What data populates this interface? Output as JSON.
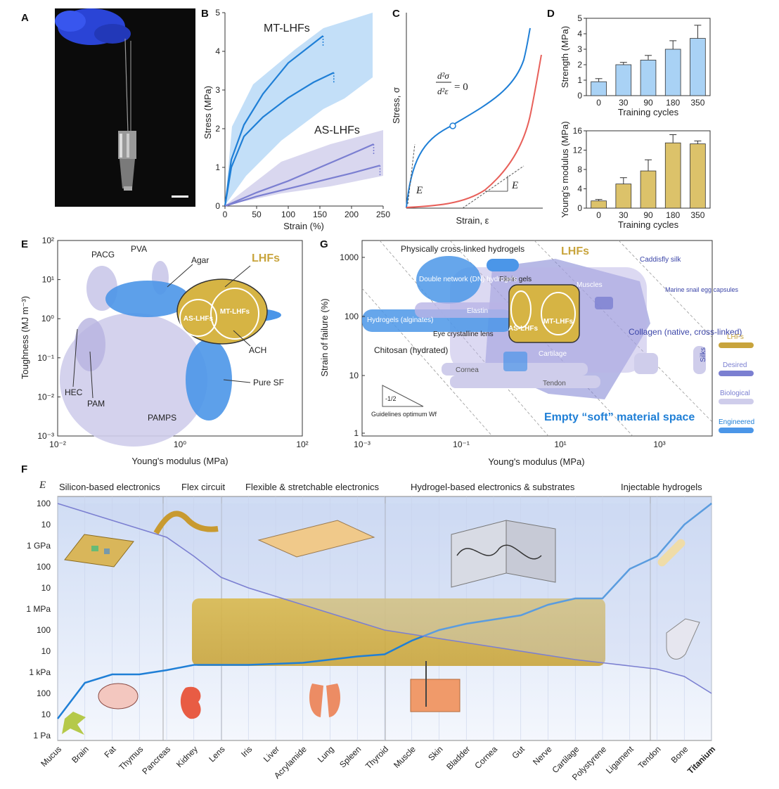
{
  "panels": {
    "A": "A",
    "B": "B",
    "C": "C",
    "D": "D",
    "E": "E",
    "F": "F",
    "G": "G"
  },
  "colors": {
    "blue": "#1f7fd6",
    "lightblue": "#a9d2f5",
    "purple": "#7b7fd1",
    "lightpurple": "#cfcdeb",
    "gold": "#c8a43c",
    "red": "#e8605a"
  },
  "chart_data": [
    {
      "panel": "B",
      "type": "line",
      "xlabel": "Strain (%)",
      "ylabel": "Stress (MPa)",
      "xlim": [
        0,
        250
      ],
      "ylim": [
        0,
        5
      ],
      "xticks": [
        "0",
        "50",
        "100",
        "150",
        "200",
        "250"
      ],
      "yticks": [
        "0",
        "1",
        "2",
        "3",
        "4",
        "5"
      ],
      "annotations": [
        "MT-LHFs",
        "AS-LHFs"
      ],
      "series": [
        {
          "name": "MT-LHFs",
          "x": [
            0,
            10,
            30,
            60,
            100,
            155
          ],
          "y": [
            0,
            1.2,
            2.1,
            2.9,
            3.7,
            4.4
          ]
        },
        {
          "name": "MT-LHFs",
          "x": [
            0,
            10,
            30,
            60,
            100,
            140,
            172
          ],
          "y": [
            0,
            1.0,
            1.8,
            2.3,
            2.8,
            3.2,
            3.45
          ]
        },
        {
          "name": "AS-LHFs",
          "x": [
            0,
            50,
            100,
            150,
            200,
            235
          ],
          "y": [
            0,
            0.35,
            0.65,
            1.0,
            1.35,
            1.6
          ]
        },
        {
          "name": "AS-LHFs",
          "x": [
            0,
            50,
            100,
            150,
            200,
            245
          ],
          "y": [
            0,
            0.25,
            0.45,
            0.65,
            0.85,
            1.05
          ]
        }
      ]
    },
    {
      "panel": "C",
      "type": "line",
      "xlabel": "Strain, ε",
      "ylabel": "Stress, σ",
      "annotations": [
        "E",
        "E"
      ],
      "equation": {
        "num": "d²σ",
        "den": "d²ε",
        "rhs": "= 0"
      }
    },
    {
      "panel": "D-top",
      "type": "bar",
      "xlabel": "Training cycles",
      "ylabel": "Strength (MPa)",
      "categories": [
        "0",
        "30",
        "90",
        "180",
        "350"
      ],
      "values": [
        0.9,
        2.0,
        2.3,
        3.0,
        3.7
      ],
      "errors": [
        0.2,
        0.15,
        0.3,
        0.55,
        0.85
      ],
      "ylim": [
        0,
        5
      ],
      "yticks": [
        "0",
        "1",
        "2",
        "3",
        "4",
        "5"
      ]
    },
    {
      "panel": "D-bottom",
      "type": "bar",
      "xlabel": "Training cycles",
      "ylabel": "Young's modulus (MPa)",
      "categories": [
        "0",
        "30",
        "90",
        "180",
        "350"
      ],
      "values": [
        1.5,
        5.0,
        7.7,
        13.5,
        13.3
      ],
      "errors": [
        0.3,
        1.3,
        2.3,
        1.7,
        0.6
      ],
      "ylim": [
        0,
        16
      ],
      "yticks": [
        "0",
        "4",
        "8",
        "12",
        "16"
      ]
    },
    {
      "panel": "E",
      "type": "scatter",
      "xlabel": "Young's modulus (MPa)",
      "ylabel": "Toughness (MJ m⁻³)",
      "xticks": [
        "10⁻²",
        "10⁰",
        "10²"
      ],
      "yticks": [
        "10²",
        "10¹",
        "10⁰",
        "10⁻¹",
        "10⁻²",
        "10⁻³"
      ],
      "labels": [
        "PACG",
        "PVA",
        "Agar",
        "LHFs",
        "AS-LHFs",
        "MT-LHFs",
        "ACH",
        "HEC",
        "PAM",
        "PAMPS",
        "Pure SF"
      ]
    },
    {
      "panel": "G",
      "type": "scatter",
      "xlabel": "Young's modulus (MPa)",
      "ylabel": "Strain of failure (%)",
      "xticks": [
        "10⁻³",
        "10⁻¹",
        "10¹",
        "10³"
      ],
      "yticks": [
        "1000",
        "100",
        "10",
        "1"
      ],
      "labels": [
        "Physically cross-linked hydrogels",
        "LHFs",
        "Fibrin gels",
        "Double network (DN) hydrogels",
        "Caddisfly silk",
        "Muscles",
        "Marine snail egg capsules",
        "Elastin",
        "Hydrogels (alginates)",
        "Eye crystalline lens",
        "AS-LHFs",
        "MT-LHFs",
        "Collagen (native, cross-linked)",
        "Chitosan (hydrated)",
        "Cartilage",
        "Cornea",
        "Tendon",
        "Silks",
        "Empty “soft” material space",
        "Guidelines optimum Wf",
        "-1/2"
      ],
      "legend": [
        "LHFs",
        "Desired",
        "Biological",
        "Engineered"
      ]
    },
    {
      "panel": "F",
      "type": "line",
      "ylabel": "E",
      "yticks": [
        "100",
        "10",
        "1 GPa",
        "100",
        "10",
        "1 MPa",
        "100",
        "10",
        "1 kPa",
        "100",
        "10",
        "1 Pa"
      ],
      "categories": [
        "Mucus",
        "Brain",
        "Fat",
        "Thymus",
        "Pancreas",
        "Kidney",
        "Lens",
        "Iris",
        "Liver",
        "Acrylamide",
        "Lung",
        "Spleen",
        "Thyroid",
        "Muscle",
        "Skin",
        "Bladder",
        "Cornea",
        "Gut",
        "Nerve",
        "Cartilage",
        "Polystyrene",
        "Ligament",
        "Tendon",
        "Bone",
        "Titanium"
      ],
      "regions": [
        "Silicon-based electronics",
        "Flex circuit",
        "Flexible & stretchable electronics",
        "Hydrogel-based electronics & substrates",
        "Injectable hydrogels"
      ],
      "series": [
        {
          "name": "",
          "values": [
            0.8,
            2.5,
            2.9,
            2.9,
            3.1,
            3.35,
            3.35,
            3.35,
            3.4,
            3.45,
            3.6,
            3.75,
            3.85,
            4.5,
            5.0,
            5.3,
            5.5,
            5.7,
            6.2,
            6.5,
            6.5,
            7.9,
            8.5,
            10.0,
            11.0
          ]
        },
        {
          "name": "",
          "values": [
            11.0,
            10.6,
            10.2,
            9.8,
            9.4,
            8.5,
            7.5,
            7.0,
            6.6,
            6.2,
            5.8,
            5.4,
            5.0,
            4.8,
            4.6,
            4.4,
            4.2,
            4.0,
            3.8,
            3.6,
            3.45,
            3.3,
            3.15,
            2.8,
            2.0
          ]
        }
      ]
    }
  ]
}
